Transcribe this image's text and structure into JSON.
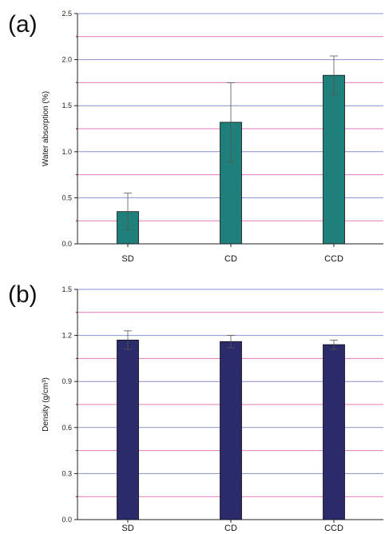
{
  "panels": [
    {
      "label": "(a)",
      "chart_data": {
        "type": "bar",
        "categories": [
          "SD",
          "CD",
          "CCD"
        ],
        "values": [
          0.35,
          1.32,
          1.83
        ],
        "errors": [
          0.2,
          0.43,
          0.21
        ],
        "title": "",
        "xlabel": "",
        "ylabel": "Water absorption (%)",
        "ylim": [
          0,
          2.5
        ],
        "yticks": [
          0.0,
          0.5,
          1.0,
          1.5,
          2.0,
          2.5
        ],
        "ytick_labels": [
          "0.0",
          "0.5",
          "1.0",
          "1.5",
          "2.0",
          "2.5"
        ],
        "grid": true,
        "bar_color": "#1f7f7a"
      }
    },
    {
      "label": "(b)",
      "chart_data": {
        "type": "bar",
        "categories": [
          "SD",
          "CD",
          "CCD"
        ],
        "values": [
          1.17,
          1.16,
          1.14
        ],
        "errors": [
          0.06,
          0.04,
          0.03
        ],
        "title": "",
        "xlabel": "",
        "ylabel": "Density (g/cm³)",
        "ylim": [
          0,
          1.5
        ],
        "yticks": [
          0.0,
          0.3,
          0.6,
          0.9,
          1.2,
          1.5
        ],
        "ytick_labels": [
          "0.0",
          "0.3",
          "0.6",
          "0.9",
          "1.2",
          "1.5"
        ],
        "grid": true,
        "bar_color": "#2b2a6b"
      }
    }
  ],
  "colors": {
    "grid_major": "#8a8fd0",
    "grid_minor": "#e07ab8"
  }
}
